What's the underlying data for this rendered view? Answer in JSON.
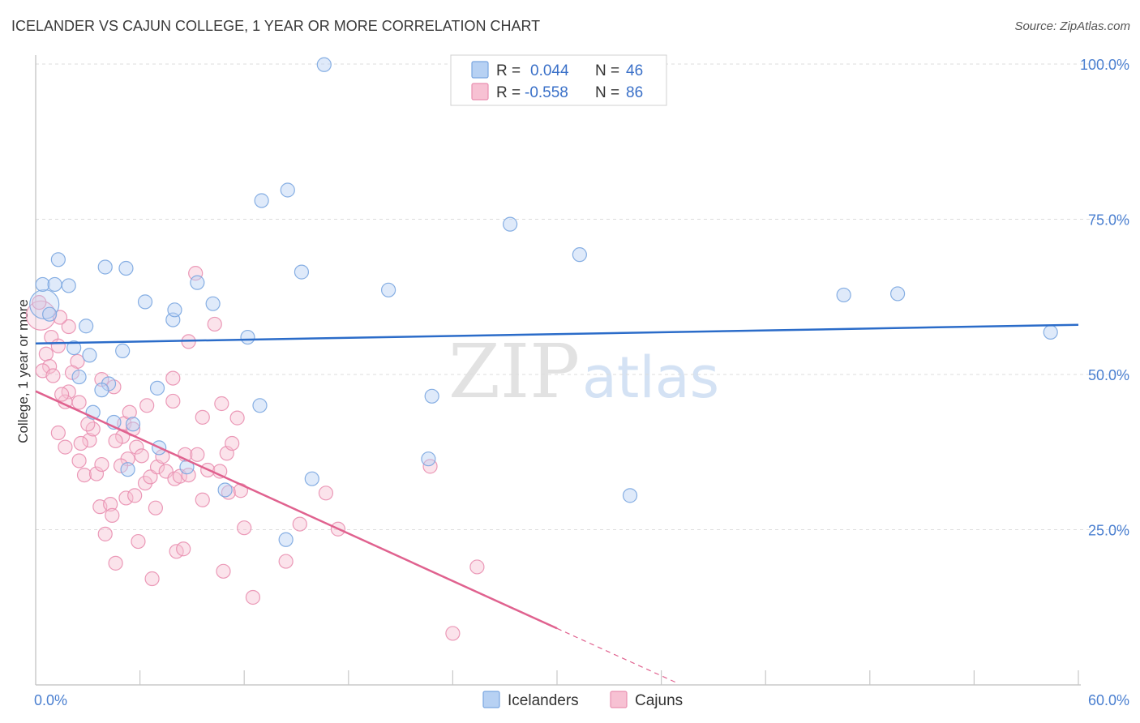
{
  "header": {
    "title": "ICELANDER VS CAJUN COLLEGE, 1 YEAR OR MORE CORRELATION CHART",
    "source": "Source: ZipAtlas.com"
  },
  "watermark": {
    "zip": "ZIP",
    "atlas": "atlas"
  },
  "legend": {
    "series": [
      {
        "name": "Icelanders",
        "r_label": "R =",
        "r_value": "0.044",
        "n_label": "N =",
        "n_value": "46"
      },
      {
        "name": "Cajuns",
        "r_label": "R =",
        "r_value": "-0.558",
        "n_label": "N =",
        "n_value": "86"
      }
    ]
  },
  "colors": {
    "blue_fill": "#b7d1f3",
    "blue_stroke": "#7aa6e0",
    "blue_line": "#2b6cc9",
    "pink_fill": "#f7c1d3",
    "pink_stroke": "#e98fb0",
    "pink_line": "#e0628f",
    "grid": "#dddddd",
    "axis_text": "#4a7fd0"
  },
  "chart_data": {
    "type": "scatter",
    "title": "ICELANDER VS CAJUN COLLEGE, 1 YEAR OR MORE CORRELATION CHART",
    "xlabel": "",
    "ylabel": "College, 1 year or more",
    "xlim": [
      0,
      60
    ],
    "ylim": [
      0,
      103
    ],
    "x_tick_labels": [
      {
        "value": 0,
        "label": "0.0%"
      },
      {
        "value": 60,
        "label": "60.0%"
      }
    ],
    "y_tick_labels": [
      {
        "value": 25,
        "label": "25.0%"
      },
      {
        "value": 50,
        "label": "50.0%"
      },
      {
        "value": 75,
        "label": "75.0%"
      },
      {
        "value": 100,
        "label": "100.0%"
      }
    ],
    "x_minor_ticks": [
      0,
      6,
      12,
      18,
      24,
      30,
      36,
      42,
      48,
      54,
      60
    ],
    "series": [
      {
        "name": "Icelanders",
        "color": "#7aa6e0",
        "trend": {
          "x": [
            0,
            60
          ],
          "y": [
            55.0,
            58.0
          ]
        },
        "points": [
          {
            "x": 0.5,
            "y": 61.3,
            "big": true
          },
          {
            "x": 0.4,
            "y": 64.5
          },
          {
            "x": 1.1,
            "y": 64.5
          },
          {
            "x": 1.9,
            "y": 64.3
          },
          {
            "x": 1.3,
            "y": 68.5
          },
          {
            "x": 0.8,
            "y": 59.7
          },
          {
            "x": 2.9,
            "y": 57.8
          },
          {
            "x": 2.2,
            "y": 54.3
          },
          {
            "x": 3.1,
            "y": 53.1
          },
          {
            "x": 4.0,
            "y": 67.3
          },
          {
            "x": 5.2,
            "y": 67.1
          },
          {
            "x": 2.5,
            "y": 49.6
          },
          {
            "x": 4.2,
            "y": 48.5
          },
          {
            "x": 3.8,
            "y": 47.5
          },
          {
            "x": 3.3,
            "y": 43.9
          },
          {
            "x": 4.5,
            "y": 42.3
          },
          {
            "x": 5.6,
            "y": 42.0
          },
          {
            "x": 5.0,
            "y": 53.8
          },
          {
            "x": 6.3,
            "y": 61.7
          },
          {
            "x": 7.9,
            "y": 58.8
          },
          {
            "x": 8.0,
            "y": 60.4
          },
          {
            "x": 9.3,
            "y": 64.8
          },
          {
            "x": 10.2,
            "y": 61.4
          },
          {
            "x": 7.0,
            "y": 47.8
          },
          {
            "x": 7.1,
            "y": 38.2
          },
          {
            "x": 5.3,
            "y": 34.7
          },
          {
            "x": 8.7,
            "y": 35.1
          },
          {
            "x": 10.9,
            "y": 31.4
          },
          {
            "x": 13.0,
            "y": 78.0
          },
          {
            "x": 14.5,
            "y": 79.7
          },
          {
            "x": 16.6,
            "y": 99.9
          },
          {
            "x": 15.3,
            "y": 66.5
          },
          {
            "x": 12.2,
            "y": 56.0
          },
          {
            "x": 12.9,
            "y": 45.0
          },
          {
            "x": 15.9,
            "y": 33.2
          },
          {
            "x": 14.4,
            "y": 23.4
          },
          {
            "x": 20.3,
            "y": 63.6
          },
          {
            "x": 22.8,
            "y": 46.5
          },
          {
            "x": 22.6,
            "y": 36.4
          },
          {
            "x": 27.3,
            "y": 74.2
          },
          {
            "x": 31.3,
            "y": 69.3
          },
          {
            "x": 34.2,
            "y": 30.5
          },
          {
            "x": 46.5,
            "y": 62.8
          },
          {
            "x": 49.6,
            "y": 63.0
          },
          {
            "x": 58.4,
            "y": 56.8
          }
        ]
      },
      {
        "name": "Cajuns",
        "color": "#e98fb0",
        "trend": {
          "x": [
            0,
            30.0
          ],
          "y": [
            47.3,
            9.1
          ]
        },
        "trend_dashed": {
          "x": [
            30.0,
            37.0
          ],
          "y": [
            9.1,
            0.2
          ]
        },
        "points": [
          {
            "x": 0.3,
            "y": 59.5,
            "big": true
          },
          {
            "x": 0.2,
            "y": 61.6
          },
          {
            "x": 0.9,
            "y": 56.0
          },
          {
            "x": 0.6,
            "y": 53.3
          },
          {
            "x": 0.8,
            "y": 51.3
          },
          {
            "x": 0.4,
            "y": 50.6
          },
          {
            "x": 1.0,
            "y": 49.8
          },
          {
            "x": 1.3,
            "y": 54.6
          },
          {
            "x": 1.9,
            "y": 57.7
          },
          {
            "x": 1.4,
            "y": 59.2
          },
          {
            "x": 2.4,
            "y": 52.1
          },
          {
            "x": 2.1,
            "y": 50.3
          },
          {
            "x": 1.9,
            "y": 47.2
          },
          {
            "x": 1.7,
            "y": 45.6
          },
          {
            "x": 1.5,
            "y": 46.8
          },
          {
            "x": 2.5,
            "y": 45.5
          },
          {
            "x": 1.3,
            "y": 40.6
          },
          {
            "x": 1.7,
            "y": 38.3
          },
          {
            "x": 2.5,
            "y": 36.1
          },
          {
            "x": 3.1,
            "y": 39.4
          },
          {
            "x": 3.3,
            "y": 41.2
          },
          {
            "x": 2.8,
            "y": 33.8
          },
          {
            "x": 3.5,
            "y": 34.0
          },
          {
            "x": 3.8,
            "y": 35.5
          },
          {
            "x": 3.7,
            "y": 28.7
          },
          {
            "x": 4.3,
            "y": 29.1
          },
          {
            "x": 4.4,
            "y": 27.3
          },
          {
            "x": 4.0,
            "y": 24.3
          },
          {
            "x": 4.6,
            "y": 19.6
          },
          {
            "x": 3.8,
            "y": 49.2
          },
          {
            "x": 4.5,
            "y": 48.0
          },
          {
            "x": 5.1,
            "y": 42.1
          },
          {
            "x": 5.4,
            "y": 43.9
          },
          {
            "x": 5.6,
            "y": 41.2
          },
          {
            "x": 5.0,
            "y": 40.0
          },
          {
            "x": 4.6,
            "y": 39.3
          },
          {
            "x": 5.8,
            "y": 38.3
          },
          {
            "x": 5.3,
            "y": 36.4
          },
          {
            "x": 6.1,
            "y": 36.9
          },
          {
            "x": 5.2,
            "y": 30.1
          },
          {
            "x": 5.7,
            "y": 30.5
          },
          {
            "x": 5.9,
            "y": 23.1
          },
          {
            "x": 6.7,
            "y": 17.1
          },
          {
            "x": 6.3,
            "y": 32.5
          },
          {
            "x": 6.6,
            "y": 33.5
          },
          {
            "x": 7.0,
            "y": 35.1
          },
          {
            "x": 7.3,
            "y": 36.8
          },
          {
            "x": 7.5,
            "y": 34.4
          },
          {
            "x": 8.0,
            "y": 33.2
          },
          {
            "x": 8.3,
            "y": 33.6
          },
          {
            "x": 8.8,
            "y": 33.8
          },
          {
            "x": 8.6,
            "y": 37.1
          },
          {
            "x": 7.9,
            "y": 45.7
          },
          {
            "x": 7.9,
            "y": 49.4
          },
          {
            "x": 8.8,
            "y": 55.3
          },
          {
            "x": 9.2,
            "y": 66.3
          },
          {
            "x": 9.3,
            "y": 37.1
          },
          {
            "x": 9.6,
            "y": 29.8
          },
          {
            "x": 9.9,
            "y": 34.6
          },
          {
            "x": 9.6,
            "y": 43.1
          },
          {
            "x": 10.3,
            "y": 58.1
          },
          {
            "x": 10.6,
            "y": 34.4
          },
          {
            "x": 10.7,
            "y": 45.3
          },
          {
            "x": 11.0,
            "y": 37.3
          },
          {
            "x": 11.3,
            "y": 38.9
          },
          {
            "x": 11.1,
            "y": 31.0
          },
          {
            "x": 11.8,
            "y": 31.3
          },
          {
            "x": 12.0,
            "y": 25.3
          },
          {
            "x": 11.6,
            "y": 43.0
          },
          {
            "x": 8.1,
            "y": 21.5
          },
          {
            "x": 8.5,
            "y": 21.9
          },
          {
            "x": 10.8,
            "y": 18.3
          },
          {
            "x": 12.5,
            "y": 14.1
          },
          {
            "x": 14.4,
            "y": 19.9
          },
          {
            "x": 15.2,
            "y": 25.9
          },
          {
            "x": 16.7,
            "y": 30.9
          },
          {
            "x": 17.4,
            "y": 25.1
          },
          {
            "x": 22.7,
            "y": 35.2
          },
          {
            "x": 25.4,
            "y": 19.0
          },
          {
            "x": 24.0,
            "y": 8.3
          },
          {
            "x": 6.4,
            "y": 45.0
          },
          {
            "x": 4.9,
            "y": 35.3
          },
          {
            "x": 3.0,
            "y": 42.0
          },
          {
            "x": 2.6,
            "y": 38.9
          },
          {
            "x": 6.9,
            "y": 28.5
          }
        ]
      }
    ]
  }
}
